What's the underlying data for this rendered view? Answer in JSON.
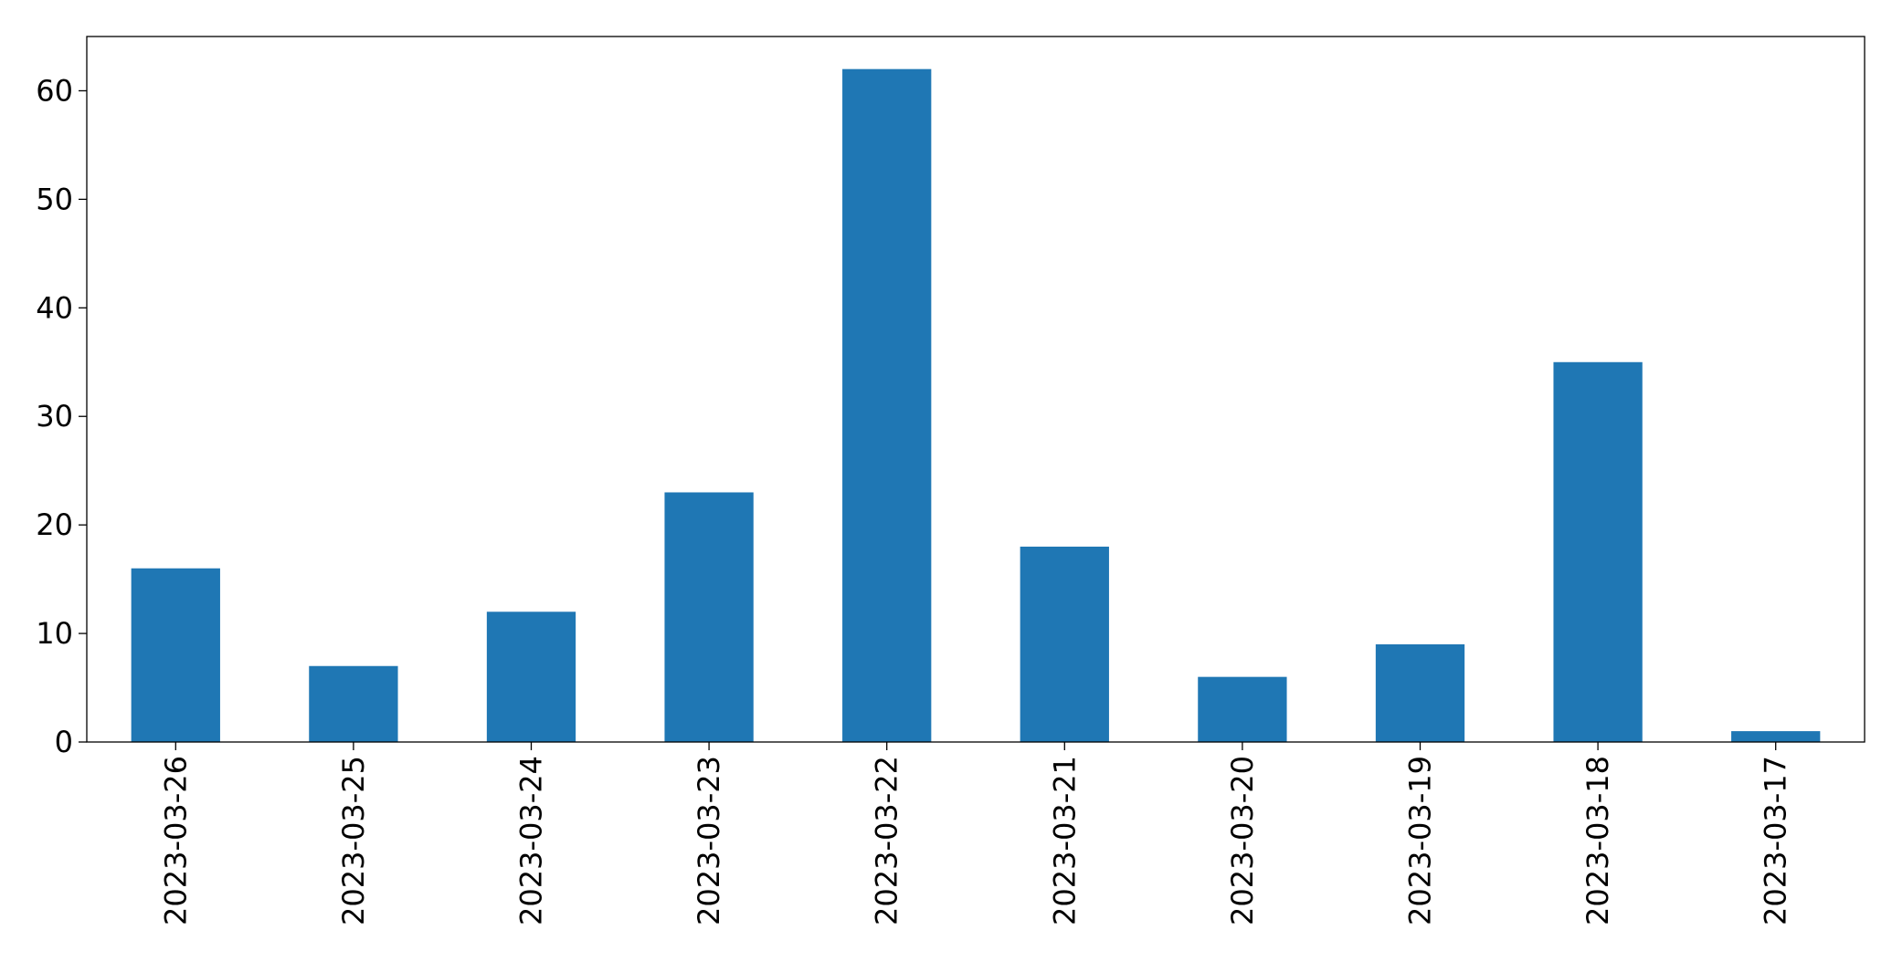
{
  "chart_data": {
    "type": "bar",
    "title": "",
    "xlabel": "",
    "ylabel": "",
    "categories": [
      "2023-03-26",
      "2023-03-25",
      "2023-03-24",
      "2023-03-23",
      "2023-03-22",
      "2023-03-21",
      "2023-03-20",
      "2023-03-19",
      "2023-03-18",
      "2023-03-17"
    ],
    "values": [
      16,
      7,
      12,
      23,
      62,
      18,
      6,
      9,
      35,
      1
    ],
    "ylim": [
      0,
      65
    ],
    "yticks": [
      0,
      10,
      20,
      30,
      40,
      50,
      60
    ],
    "grid": false,
    "legend": false,
    "bar_color": "#1f77b4"
  }
}
